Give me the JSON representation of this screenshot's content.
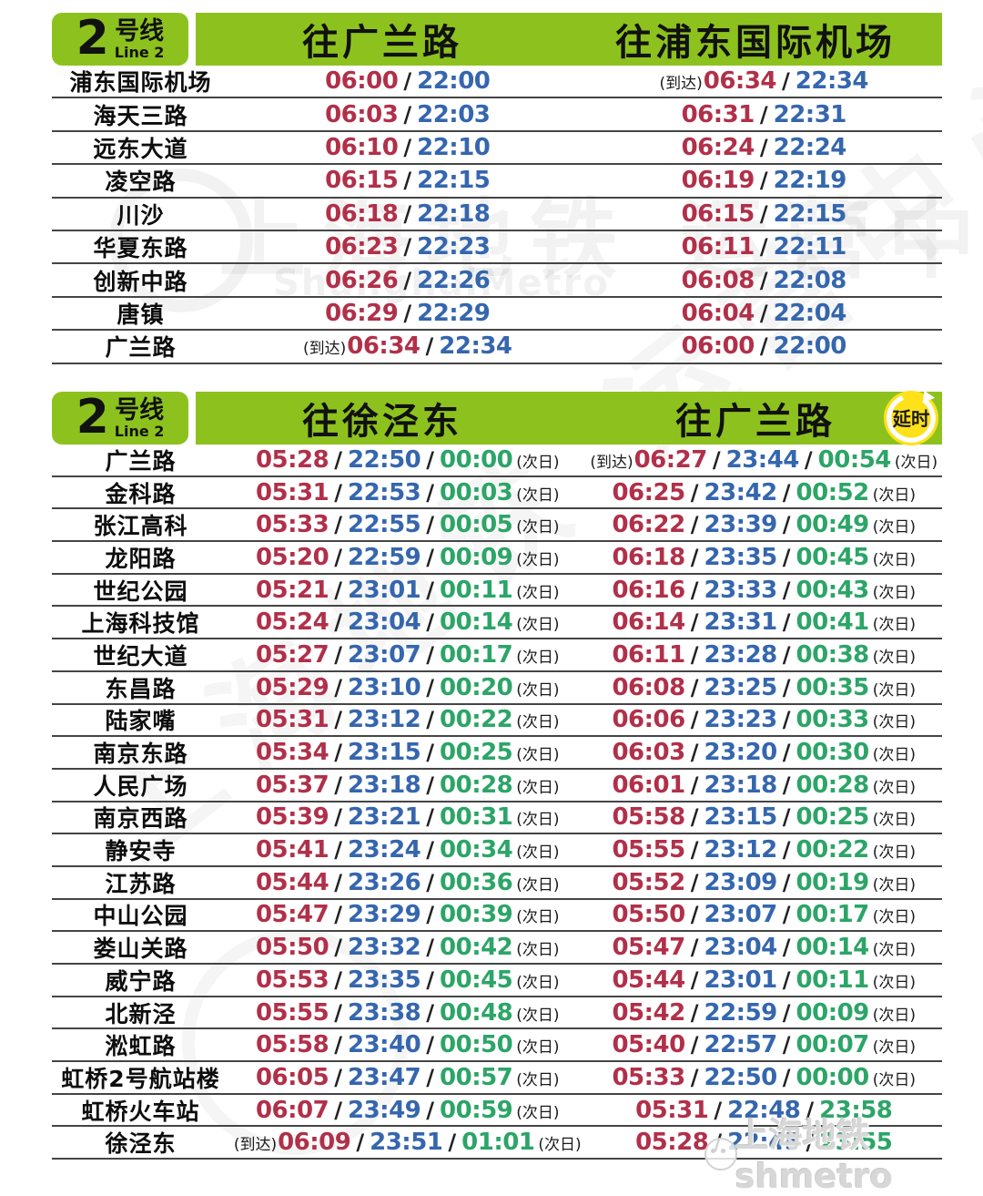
{
  "colors": {
    "header_green": "#8DC21E",
    "first_train_red": "#B13049",
    "last_train_blue": "#3566AE",
    "extra_train_green": "#2CA567",
    "delay_badge_yellow": "#FFE11A"
  },
  "line_badge": {
    "number": "2",
    "cn": "号线",
    "en": "Line 2"
  },
  "separator": "/",
  "watermarks": {
    "center_cn": "上海地铁 运营中心",
    "center_en": "ShanghaiMetro",
    "corner_logo": "上海地铁shmetro"
  },
  "table1": {
    "dir_a": "往广兰路",
    "dir_b": "往浦东国际机场",
    "rows": [
      {
        "station": "浦东国际机场",
        "a_pre": "",
        "a": [
          "06:00",
          "22:00"
        ],
        "a_sfx": "",
        "b_pre": "(到达)",
        "b": [
          "06:34",
          "22:34"
        ],
        "b_sfx": ""
      },
      {
        "station": "海天三路",
        "a_pre": "",
        "a": [
          "06:03",
          "22:03"
        ],
        "a_sfx": "",
        "b_pre": "",
        "b": [
          "06:31",
          "22:31"
        ],
        "b_sfx": ""
      },
      {
        "station": "远东大道",
        "a_pre": "",
        "a": [
          "06:10",
          "22:10"
        ],
        "a_sfx": "",
        "b_pre": "",
        "b": [
          "06:24",
          "22:24"
        ],
        "b_sfx": ""
      },
      {
        "station": "凌空路",
        "a_pre": "",
        "a": [
          "06:15",
          "22:15"
        ],
        "a_sfx": "",
        "b_pre": "",
        "b": [
          "06:19",
          "22:19"
        ],
        "b_sfx": ""
      },
      {
        "station": "川沙",
        "a_pre": "",
        "a": [
          "06:18",
          "22:18"
        ],
        "a_sfx": "",
        "b_pre": "",
        "b": [
          "06:15",
          "22:15"
        ],
        "b_sfx": ""
      },
      {
        "station": "华夏东路",
        "a_pre": "",
        "a": [
          "06:23",
          "22:23"
        ],
        "a_sfx": "",
        "b_pre": "",
        "b": [
          "06:11",
          "22:11"
        ],
        "b_sfx": ""
      },
      {
        "station": "创新中路",
        "a_pre": "",
        "a": [
          "06:26",
          "22:26"
        ],
        "a_sfx": "",
        "b_pre": "",
        "b": [
          "06:08",
          "22:08"
        ],
        "b_sfx": ""
      },
      {
        "station": "唐镇",
        "a_pre": "",
        "a": [
          "06:29",
          "22:29"
        ],
        "a_sfx": "",
        "b_pre": "",
        "b": [
          "06:04",
          "22:04"
        ],
        "b_sfx": ""
      },
      {
        "station": "广兰路",
        "a_pre": "(到达)",
        "a": [
          "06:34",
          "22:34"
        ],
        "a_sfx": "",
        "b_pre": "",
        "b": [
          "06:00",
          "22:00"
        ],
        "b_sfx": ""
      }
    ]
  },
  "table2": {
    "dir_a": "往徐泾东",
    "dir_b": "往广兰路",
    "delay_badge": "延时",
    "rows": [
      {
        "station": "广兰路",
        "a_pre": "",
        "a": [
          "05:28",
          "22:50",
          "00:00"
        ],
        "a_sfx": "(次日)",
        "b_pre": "(到达)",
        "b": [
          "06:27",
          "23:44",
          "00:54"
        ],
        "b_sfx": "(次日)"
      },
      {
        "station": "金科路",
        "a_pre": "",
        "a": [
          "05:31",
          "22:53",
          "00:03"
        ],
        "a_sfx": "(次日)",
        "b_pre": "",
        "b": [
          "06:25",
          "23:42",
          "00:52"
        ],
        "b_sfx": "(次日)"
      },
      {
        "station": "张江高科",
        "a_pre": "",
        "a": [
          "05:33",
          "22:55",
          "00:05"
        ],
        "a_sfx": "(次日)",
        "b_pre": "",
        "b": [
          "06:22",
          "23:39",
          "00:49"
        ],
        "b_sfx": "(次日)"
      },
      {
        "station": "龙阳路",
        "a_pre": "",
        "a": [
          "05:20",
          "22:59",
          "00:09"
        ],
        "a_sfx": "(次日)",
        "b_pre": "",
        "b": [
          "06:18",
          "23:35",
          "00:45"
        ],
        "b_sfx": "(次日)"
      },
      {
        "station": "世纪公园",
        "a_pre": "",
        "a": [
          "05:21",
          "23:01",
          "00:11"
        ],
        "a_sfx": "(次日)",
        "b_pre": "",
        "b": [
          "06:16",
          "23:33",
          "00:43"
        ],
        "b_sfx": "(次日)"
      },
      {
        "station": "上海科技馆",
        "a_pre": "",
        "a": [
          "05:24",
          "23:04",
          "00:14"
        ],
        "a_sfx": "(次日)",
        "b_pre": "",
        "b": [
          "06:14",
          "23:31",
          "00:41"
        ],
        "b_sfx": "(次日)"
      },
      {
        "station": "世纪大道",
        "a_pre": "",
        "a": [
          "05:27",
          "23:07",
          "00:17"
        ],
        "a_sfx": "(次日)",
        "b_pre": "",
        "b": [
          "06:11",
          "23:28",
          "00:38"
        ],
        "b_sfx": "(次日)"
      },
      {
        "station": "东昌路",
        "a_pre": "",
        "a": [
          "05:29",
          "23:10",
          "00:20"
        ],
        "a_sfx": "(次日)",
        "b_pre": "",
        "b": [
          "06:08",
          "23:25",
          "00:35"
        ],
        "b_sfx": "(次日)"
      },
      {
        "station": "陆家嘴",
        "a_pre": "",
        "a": [
          "05:31",
          "23:12",
          "00:22"
        ],
        "a_sfx": "(次日)",
        "b_pre": "",
        "b": [
          "06:06",
          "23:23",
          "00:33"
        ],
        "b_sfx": "(次日)"
      },
      {
        "station": "南京东路",
        "a_pre": "",
        "a": [
          "05:34",
          "23:15",
          "00:25"
        ],
        "a_sfx": "(次日)",
        "b_pre": "",
        "b": [
          "06:03",
          "23:20",
          "00:30"
        ],
        "b_sfx": "(次日)"
      },
      {
        "station": "人民广场",
        "a_pre": "",
        "a": [
          "05:37",
          "23:18",
          "00:28"
        ],
        "a_sfx": "(次日)",
        "b_pre": "",
        "b": [
          "06:01",
          "23:18",
          "00:28"
        ],
        "b_sfx": "(次日)"
      },
      {
        "station": "南京西路",
        "a_pre": "",
        "a": [
          "05:39",
          "23:21",
          "00:31"
        ],
        "a_sfx": "(次日)",
        "b_pre": "",
        "b": [
          "05:58",
          "23:15",
          "00:25"
        ],
        "b_sfx": "(次日)"
      },
      {
        "station": "静安寺",
        "a_pre": "",
        "a": [
          "05:41",
          "23:24",
          "00:34"
        ],
        "a_sfx": "(次日)",
        "b_pre": "",
        "b": [
          "05:55",
          "23:12",
          "00:22"
        ],
        "b_sfx": "(次日)"
      },
      {
        "station": "江苏路",
        "a_pre": "",
        "a": [
          "05:44",
          "23:26",
          "00:36"
        ],
        "a_sfx": "(次日)",
        "b_pre": "",
        "b": [
          "05:52",
          "23:09",
          "00:19"
        ],
        "b_sfx": "(次日)"
      },
      {
        "station": "中山公园",
        "a_pre": "",
        "a": [
          "05:47",
          "23:29",
          "00:39"
        ],
        "a_sfx": "(次日)",
        "b_pre": "",
        "b": [
          "05:50",
          "23:07",
          "00:17"
        ],
        "b_sfx": "(次日)"
      },
      {
        "station": "娄山关路",
        "a_pre": "",
        "a": [
          "05:50",
          "23:32",
          "00:42"
        ],
        "a_sfx": "(次日)",
        "b_pre": "",
        "b": [
          "05:47",
          "23:04",
          "00:14"
        ],
        "b_sfx": "(次日)"
      },
      {
        "station": "威宁路",
        "a_pre": "",
        "a": [
          "05:53",
          "23:35",
          "00:45"
        ],
        "a_sfx": "(次日)",
        "b_pre": "",
        "b": [
          "05:44",
          "23:01",
          "00:11"
        ],
        "b_sfx": "(次日)"
      },
      {
        "station": "北新泾",
        "a_pre": "",
        "a": [
          "05:55",
          "23:38",
          "00:48"
        ],
        "a_sfx": "(次日)",
        "b_pre": "",
        "b": [
          "05:42",
          "22:59",
          "00:09"
        ],
        "b_sfx": "(次日)"
      },
      {
        "station": "淞虹路",
        "a_pre": "",
        "a": [
          "05:58",
          "23:40",
          "00:50"
        ],
        "a_sfx": "(次日)",
        "b_pre": "",
        "b": [
          "05:40",
          "22:57",
          "00:07"
        ],
        "b_sfx": "(次日)"
      },
      {
        "station": "虹桥2号航站楼",
        "a_pre": "",
        "a": [
          "06:05",
          "23:47",
          "00:57"
        ],
        "a_sfx": "(次日)",
        "b_pre": "",
        "b": [
          "05:33",
          "22:50",
          "00:00"
        ],
        "b_sfx": "(次日)"
      },
      {
        "station": "虹桥火车站",
        "a_pre": "",
        "a": [
          "06:07",
          "23:49",
          "00:59"
        ],
        "a_sfx": "(次日)",
        "b_pre": "",
        "b": [
          "05:31",
          "22:48",
          "23:58"
        ],
        "b_sfx": ""
      },
      {
        "station": "徐泾东",
        "a_pre": "(到达)",
        "a": [
          "06:09",
          "23:51",
          "01:01"
        ],
        "a_sfx": "(次日)",
        "b_pre": "",
        "b": [
          "05:28",
          "22:45",
          "23:55"
        ],
        "b_sfx": ""
      }
    ]
  }
}
